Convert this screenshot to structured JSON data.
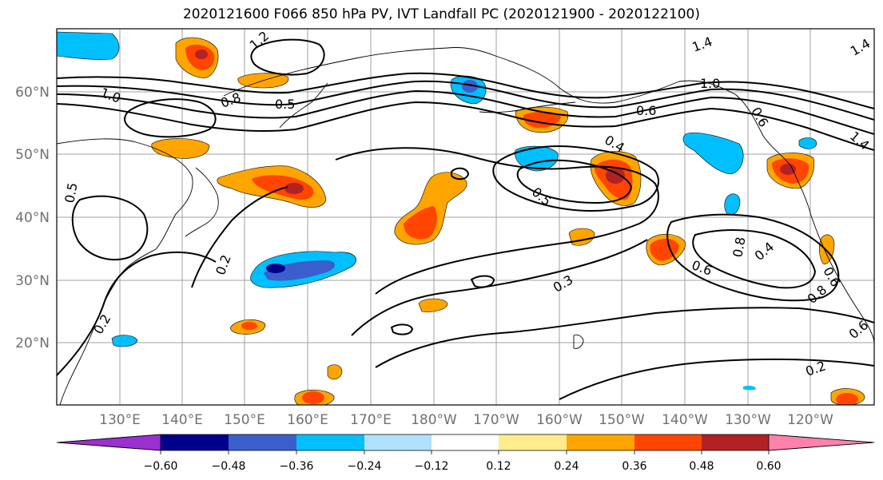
{
  "title": "2020121600 F066 850 hPa PV, IVT Landfall PC (2020121900 - 2020122100)",
  "lat_labels": [
    "60°N",
    "50°N",
    "40°N",
    "30°N",
    "20°N"
  ],
  "lon_labels": [
    "130°E",
    "140°E",
    "150°E",
    "160°E",
    "170°E",
    "180°W",
    "170°W",
    "160°W",
    "150°W",
    "140°W",
    "130°W",
    "120°W"
  ],
  "contour_labels": [
    "1.2",
    "1.4",
    "1.0",
    "0.8",
    "0.5",
    "0.6",
    "0.4",
    "0.5",
    "0.2",
    "0.3",
    "0.2",
    "0.5",
    "0.6",
    "0.4",
    "0.6",
    "0.8",
    "0.6",
    "0.2",
    "1.4",
    "0.6",
    "0.8",
    "1.0",
    "1.4"
  ],
  "colorbar": {
    "tick_labels": [
      "−0.60",
      "−0.48",
      "−0.36",
      "−0.24",
      "−0.12",
      "0.12",
      "0.24",
      "0.36",
      "0.48",
      "0.60"
    ],
    "colors": [
      "#9b30d0",
      "#00008b",
      "#3a5fcd",
      "#00bfff",
      "#b0e2ff",
      "#ffffff",
      "#ffec8b",
      "#ffa500",
      "#ff4500",
      "#b22222",
      "#ff82ab"
    ]
  },
  "colors": {
    "neg_strong": "#00008b",
    "neg_mid": "#3a5fcd",
    "neg_light": "#00bfff",
    "neg_pale": "#b0e2ff",
    "pos_pale": "#ffec8b",
    "pos_mid": "#ffa500",
    "pos_strong": "#ff4500",
    "pos_max": "#b22222"
  }
}
